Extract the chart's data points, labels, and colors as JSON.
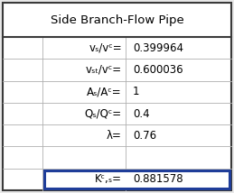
{
  "title": "Side Branch-Flow Pipe",
  "rows": [
    {
      "label": "vₛ/vᶜ=",
      "value": "0.399964"
    },
    {
      "label": "vₛₜ/vᶜ=",
      "value": "0.600036"
    },
    {
      "label": "Aₛ/Aᶜ=",
      "value": "1"
    },
    {
      "label": "Qₛ/Qᶜ=",
      "value": "0.4"
    },
    {
      "label": "λ=",
      "value": "0.76"
    },
    {
      "label": "",
      "value": ""
    },
    {
      "label": "Kᶜ,ₛ=",
      "value": "0.881578"
    }
  ],
  "highlight_row": 6,
  "highlight_color": "#1F3D99",
  "bg_color": "#e8e8e8",
  "table_bg": "#ffffff",
  "border_color": "#3a3a3a",
  "grid_color": "#b0b0b0",
  "title_fontsize": 9.5,
  "cell_fontsize": 8.5
}
